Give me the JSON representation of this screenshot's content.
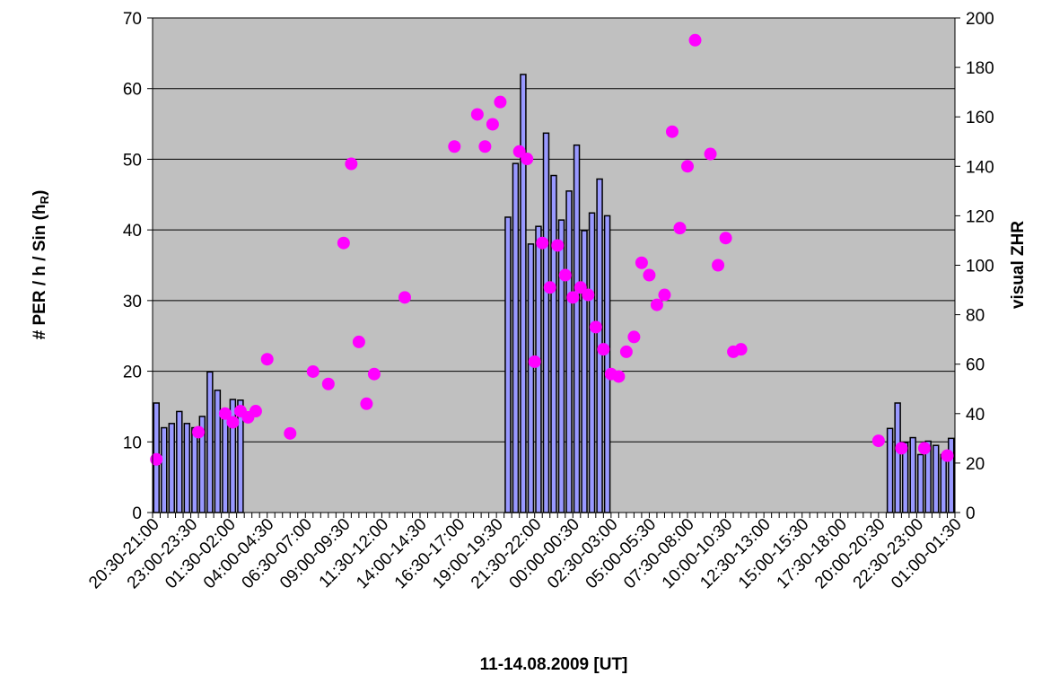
{
  "chart_data": {
    "type": "bar",
    "xlabel": "11-14.08.2009 [UT]",
    "ylabel": "# PER / h / Sin (h",
    "ylabel_sub": "R",
    "ylabel_end": ")",
    "y2label": "visual ZHR",
    "ylim": [
      0,
      70
    ],
    "y2lim": [
      0,
      200
    ],
    "yticks": [
      0,
      10,
      20,
      30,
      40,
      50,
      60,
      70
    ],
    "y2ticks": [
      0,
      20,
      40,
      60,
      80,
      100,
      120,
      140,
      160,
      180,
      200
    ],
    "grid": true,
    "plot_background": "#c0c0c0",
    "bar_color": "#9999ff",
    "point_color": "#ff00ff",
    "slot_count": 105,
    "x_tick_labels": [
      {
        "slot": 0,
        "label": "20:30-21:00"
      },
      {
        "slot": 5,
        "label": "23:00-23:30"
      },
      {
        "slot": 10,
        "label": "01:30-02:00"
      },
      {
        "slot": 15,
        "label": "04:00-04:30"
      },
      {
        "slot": 20,
        "label": "06:30-07:00"
      },
      {
        "slot": 25,
        "label": "09:00-09:30"
      },
      {
        "slot": 30,
        "label": "11:30-12:00"
      },
      {
        "slot": 35,
        "label": "14:00-14:30"
      },
      {
        "slot": 40,
        "label": "16:30-17:00"
      },
      {
        "slot": 45,
        "label": "19:00-19:30"
      },
      {
        "slot": 50,
        "label": "21:30-22:00"
      },
      {
        "slot": 55,
        "label": "00:00-00:30"
      },
      {
        "slot": 60,
        "label": "02:30-03:00"
      },
      {
        "slot": 65,
        "label": "05:00-05:30"
      },
      {
        "slot": 70,
        "label": "07:30-08:00"
      },
      {
        "slot": 75,
        "label": "10:00-10:30"
      },
      {
        "slot": 80,
        "label": "12:30-13:00"
      },
      {
        "slot": 85,
        "label": "15:00-15:30"
      },
      {
        "slot": 90,
        "label": "17:30-18:00"
      },
      {
        "slot": 95,
        "label": "20:00-20:30"
      },
      {
        "slot": 100,
        "label": "22:30-23:00"
      },
      {
        "slot": 105,
        "label": "01:00-01:30"
      }
    ],
    "bar_series": {
      "axis": "left",
      "start_slots": [
        0,
        46,
        96
      ],
      "groups": [
        [
          15.5,
          12.0,
          12.6,
          14.3,
          12.6,
          12.0,
          13.6,
          19.9,
          17.3,
          14.3,
          16.0,
          15.9
        ],
        [
          41.8,
          49.4,
          62.0,
          38.0,
          40.5,
          53.7,
          47.7,
          41.4,
          45.5,
          52.0,
          39.9,
          42.4,
          47.2,
          42.0
        ],
        [
          11.9,
          15.5,
          9.9,
          10.6,
          8.2,
          10.1,
          9.5,
          8.2,
          10.5
        ]
      ]
    },
    "scatter_series": {
      "axis": "right",
      "points": [
        [
          0.5,
          21.5
        ],
        [
          6.0,
          32.5
        ],
        [
          9.5,
          40.0
        ],
        [
          10.5,
          36.5
        ],
        [
          11.5,
          41.0
        ],
        [
          12.5,
          38.5
        ],
        [
          13.5,
          41.0
        ],
        [
          15.0,
          62.0
        ],
        [
          18.0,
          32.0
        ],
        [
          21.0,
          57.0
        ],
        [
          23.0,
          52.0
        ],
        [
          25.0,
          109.0
        ],
        [
          26.0,
          141.0
        ],
        [
          27.0,
          69.0
        ],
        [
          28.0,
          44.0
        ],
        [
          29.0,
          56.0
        ],
        [
          33.0,
          87.0
        ],
        [
          39.5,
          148.0
        ],
        [
          42.5,
          161.0
        ],
        [
          43.5,
          148.0
        ],
        [
          44.5,
          157.0
        ],
        [
          45.5,
          166.0
        ],
        [
          48.0,
          146.0
        ],
        [
          49.0,
          143.0
        ],
        [
          50.0,
          61.0
        ],
        [
          51.0,
          109.0
        ],
        [
          52.0,
          91.0
        ],
        [
          53.0,
          108.0
        ],
        [
          54.0,
          96.0
        ],
        [
          55.0,
          87.0
        ],
        [
          56.0,
          91.0
        ],
        [
          57.0,
          88.0
        ],
        [
          58.0,
          75.0
        ],
        [
          59.0,
          66.0
        ],
        [
          60.0,
          56.0
        ],
        [
          61.0,
          55.0
        ],
        [
          62.0,
          65.0
        ],
        [
          63.0,
          71.0
        ],
        [
          64.0,
          101.0
        ],
        [
          65.0,
          96.0
        ],
        [
          66.0,
          84.0
        ],
        [
          67.0,
          88.0
        ],
        [
          68.0,
          154.0
        ],
        [
          69.0,
          115.0
        ],
        [
          70.0,
          140.0
        ],
        [
          71.0,
          191.0
        ],
        [
          73.0,
          145.0
        ],
        [
          74.0,
          100.0
        ],
        [
          75.0,
          111.0
        ],
        [
          76.0,
          65.0
        ],
        [
          77.0,
          66.0
        ],
        [
          95.0,
          29.0
        ],
        [
          98.0,
          26.0
        ],
        [
          101.0,
          26.0
        ],
        [
          104.0,
          23.0
        ]
      ]
    }
  }
}
